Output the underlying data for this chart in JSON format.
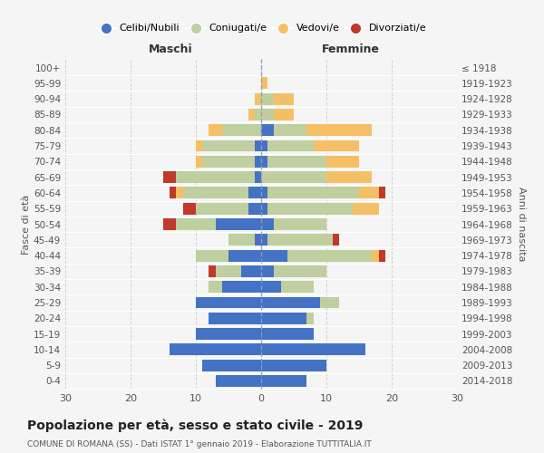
{
  "age_groups": [
    "0-4",
    "5-9",
    "10-14",
    "15-19",
    "20-24",
    "25-29",
    "30-34",
    "35-39",
    "40-44",
    "45-49",
    "50-54",
    "55-59",
    "60-64",
    "65-69",
    "70-74",
    "75-79",
    "80-84",
    "85-89",
    "90-94",
    "95-99",
    "100+"
  ],
  "birth_years": [
    "2014-2018",
    "2009-2013",
    "2004-2008",
    "1999-2003",
    "1994-1998",
    "1989-1993",
    "1984-1988",
    "1979-1983",
    "1974-1978",
    "1969-1973",
    "1964-1968",
    "1959-1963",
    "1954-1958",
    "1949-1953",
    "1944-1948",
    "1939-1943",
    "1934-1938",
    "1929-1933",
    "1924-1928",
    "1919-1923",
    "≤ 1918"
  ],
  "males": {
    "celibi": [
      7,
      9,
      14,
      10,
      8,
      10,
      6,
      3,
      5,
      1,
      7,
      2,
      2,
      1,
      1,
      1,
      0,
      0,
      0,
      0,
      0
    ],
    "coniugati": [
      0,
      0,
      0,
      0,
      0,
      0,
      2,
      4,
      5,
      4,
      6,
      8,
      10,
      12,
      8,
      8,
      6,
      1,
      0,
      0,
      0
    ],
    "vedovi": [
      0,
      0,
      0,
      0,
      0,
      0,
      0,
      0,
      0,
      0,
      0,
      0,
      1,
      0,
      1,
      1,
      2,
      1,
      1,
      0,
      0
    ],
    "divorziati": [
      0,
      0,
      0,
      0,
      0,
      0,
      0,
      1,
      0,
      0,
      2,
      2,
      1,
      2,
      0,
      0,
      0,
      0,
      0,
      0,
      0
    ]
  },
  "females": {
    "nubili": [
      7,
      10,
      16,
      8,
      7,
      9,
      3,
      2,
      4,
      1,
      2,
      1,
      1,
      0,
      1,
      1,
      2,
      0,
      0,
      0,
      0
    ],
    "coniugate": [
      0,
      0,
      0,
      0,
      1,
      3,
      5,
      8,
      13,
      10,
      8,
      13,
      14,
      10,
      9,
      7,
      5,
      2,
      2,
      0,
      0
    ],
    "vedove": [
      0,
      0,
      0,
      0,
      0,
      0,
      0,
      0,
      1,
      0,
      0,
      4,
      3,
      7,
      5,
      7,
      10,
      3,
      3,
      1,
      0
    ],
    "divorziate": [
      0,
      0,
      0,
      0,
      0,
      0,
      0,
      0,
      1,
      1,
      0,
      0,
      1,
      0,
      0,
      0,
      0,
      0,
      0,
      0,
      0
    ]
  },
  "colors": {
    "celibi_nubili": "#4472C4",
    "coniugati": "#BFCF9F",
    "vedovi": "#F5C065",
    "divorziati": "#C0392B"
  },
  "xlim": 30,
  "title": "Popolazione per età, sesso e stato civile - 2019",
  "subtitle": "COMUNE DI ROMANA (SS) - Dati ISTAT 1° gennaio 2019 - Elaborazione TUTTITALIA.IT",
  "ylabel_left": "Fasce di età",
  "ylabel_right": "Anni di nascita",
  "xlabel_left": "Maschi",
  "xlabel_right": "Femmine",
  "background_color": "#f5f5f5",
  "grid_color": "#cccccc"
}
